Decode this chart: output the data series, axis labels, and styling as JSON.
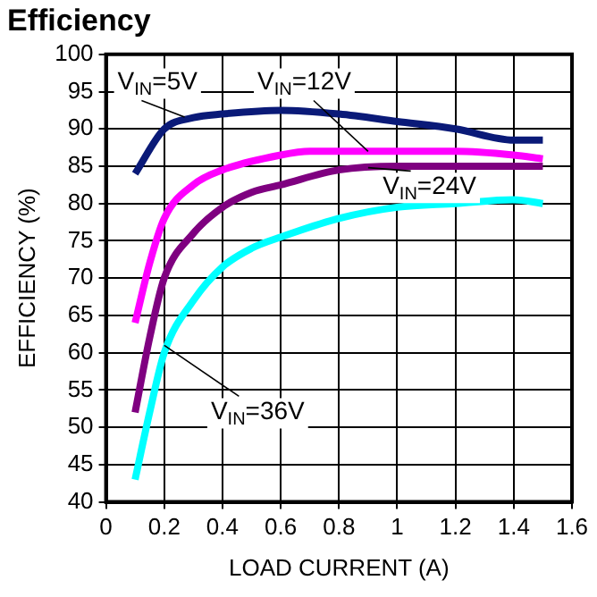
{
  "chart_data": {
    "type": "line",
    "title": "Efficiency",
    "xlabel": "LOAD CURRENT (A)",
    "ylabel": "EFFICIENCY (%)",
    "xlim": [
      0,
      1.6
    ],
    "xticks": [
      0,
      0.2,
      0.4,
      0.6,
      0.8,
      1,
      1.2,
      1.4,
      1.6
    ],
    "ylim": [
      40,
      100
    ],
    "yticks": [
      40,
      45,
      50,
      55,
      60,
      65,
      70,
      75,
      80,
      85,
      90,
      95,
      100
    ],
    "grid": true,
    "legend": false,
    "marker": "none",
    "line_style": "solid",
    "series": [
      {
        "name": "V$_{IN}$=5V",
        "color": "#0a1a78",
        "x": [
          0.1,
          0.2,
          0.3,
          0.4,
          0.6,
          0.8,
          1.0,
          1.2,
          1.4,
          1.5
        ],
        "values": [
          84,
          90,
          91.5,
          92,
          92.5,
          92,
          91,
          90,
          88.5,
          88.5
        ]
      },
      {
        "name": "V$_{IN}$=12V",
        "color": "#ff00ff",
        "x": [
          0.1,
          0.15,
          0.2,
          0.3,
          0.4,
          0.6,
          0.7,
          1.0,
          1.2,
          1.4,
          1.5
        ],
        "values": [
          64,
          72,
          78,
          82.5,
          84.5,
          86.5,
          87,
          87,
          87,
          86.5,
          86
        ]
      },
      {
        "name": "V$_{IN}$=24V",
        "color": "#7f0080",
        "x": [
          0.1,
          0.15,
          0.2,
          0.3,
          0.4,
          0.5,
          0.6,
          0.8,
          1.0,
          1.2,
          1.5
        ],
        "values": [
          52,
          62,
          70,
          76,
          79.5,
          81.5,
          82.5,
          84.5,
          85,
          85,
          85
        ]
      },
      {
        "name": "V$_{IN}$=36V",
        "color": "#00ffff",
        "x": [
          0.1,
          0.15,
          0.2,
          0.3,
          0.4,
          0.5,
          0.6,
          0.8,
          1.0,
          1.2,
          1.4,
          1.5
        ],
        "values": [
          43,
          52,
          60,
          67,
          71.5,
          74,
          75.5,
          78,
          79.5,
          80,
          80.5,
          80
        ]
      }
    ]
  }
}
